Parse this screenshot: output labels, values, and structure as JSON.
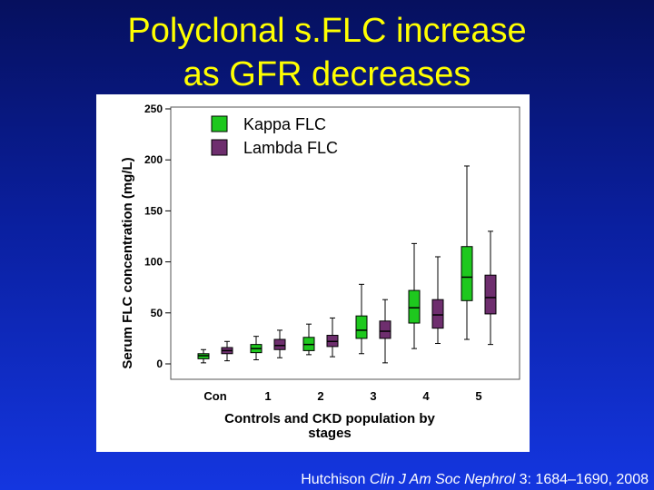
{
  "slide": {
    "title_line1": "Polyclonal s.FLC increase",
    "title_line2": "as GFR decreases",
    "citation": {
      "author": "Hutchison",
      "journal": "Clin J Am Soc Nephrol",
      "volume": "3:",
      "pages_year": "1684–1690, 2008"
    },
    "colors": {
      "title": "#ffff00",
      "kappa": "#1ec81e",
      "lambda": "#6e2e6e"
    }
  },
  "chart_data": {
    "type": "box",
    "title": "",
    "xlabel_line1": "Controls and CKD population by",
    "xlabel_line2": "stages",
    "ylabel": "Serum FLC concentration (mg/L)",
    "ylim": [
      0,
      250
    ],
    "yticks": [
      0,
      50,
      100,
      150,
      200,
      250
    ],
    "categories": [
      "Con",
      "1",
      "2",
      "3",
      "4",
      "5"
    ],
    "legend": {
      "placement": "top-left",
      "entries": [
        "Kappa FLC",
        "Lambda FLC"
      ]
    },
    "grid": false,
    "series": [
      {
        "name": "Kappa FLC",
        "color": "#1ec81e",
        "boxes": [
          {
            "min": 1,
            "q1": 5,
            "median": 8,
            "q3": 10,
            "max": 14
          },
          {
            "min": 4,
            "q1": 11,
            "median": 15,
            "q3": 19,
            "max": 27
          },
          {
            "min": 9,
            "q1": 13,
            "median": 19,
            "q3": 26,
            "max": 39
          },
          {
            "min": 10,
            "q1": 25,
            "median": 33,
            "q3": 47,
            "max": 78
          },
          {
            "min": 15,
            "q1": 40,
            "median": 55,
            "q3": 72,
            "max": 118
          },
          {
            "min": 24,
            "q1": 62,
            "median": 85,
            "q3": 115,
            "max": 194
          }
        ]
      },
      {
        "name": "Lambda FLC",
        "color": "#6e2e6e",
        "boxes": [
          {
            "min": 3,
            "q1": 10,
            "median": 13,
            "q3": 16,
            "max": 22
          },
          {
            "min": 6,
            "q1": 14,
            "median": 18,
            "q3": 24,
            "max": 33
          },
          {
            "min": 7,
            "q1": 17,
            "median": 22,
            "q3": 28,
            "max": 45
          },
          {
            "min": 1,
            "q1": 25,
            "median": 32,
            "q3": 42,
            "max": 63
          },
          {
            "min": 20,
            "q1": 35,
            "median": 48,
            "q3": 63,
            "max": 105
          },
          {
            "min": 19,
            "q1": 49,
            "median": 65,
            "q3": 87,
            "max": 130
          }
        ]
      }
    ]
  }
}
